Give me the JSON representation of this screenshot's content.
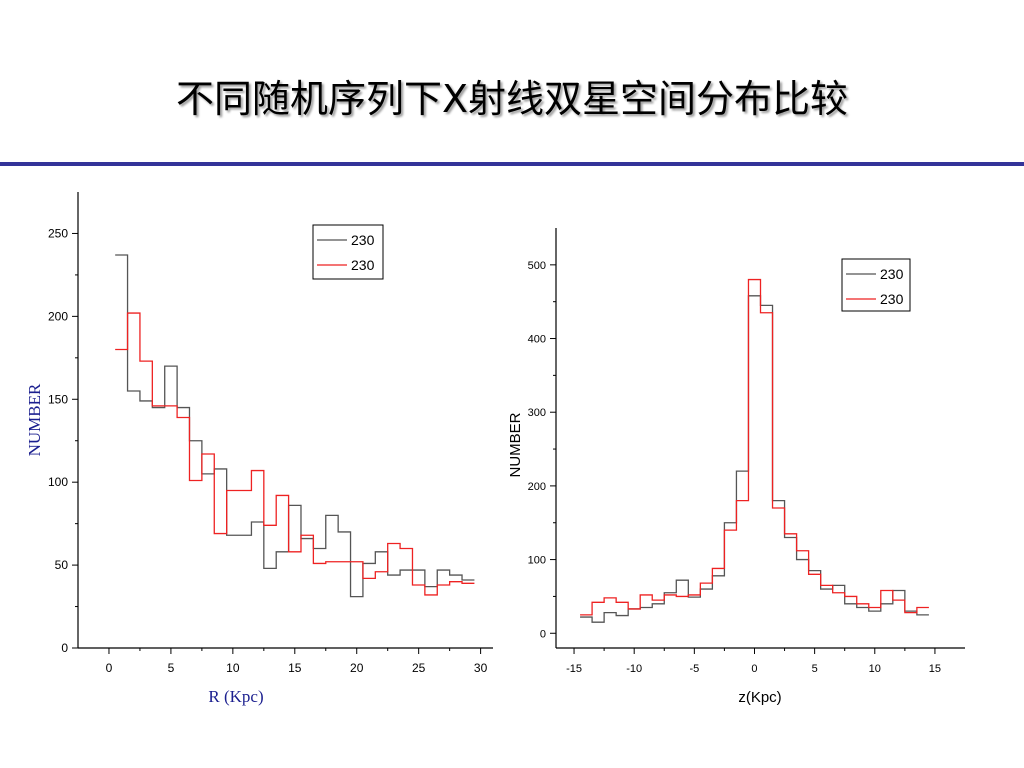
{
  "slide": {
    "title": "不同随机序列下X射线双星空间分布比较",
    "accent_color": "#333399"
  },
  "chart_data": [
    {
      "type": "line",
      "step": true,
      "xlabel": "R (Kpc)",
      "ylabel": "NUMBER",
      "xlim": [
        -2.5,
        31
      ],
      "ylim": [
        0,
        275
      ],
      "xticks": [
        0,
        5,
        10,
        15,
        20,
        25,
        30
      ],
      "yticks": [
        0,
        50,
        100,
        150,
        200,
        250
      ],
      "legend_position": "top-right",
      "bin_edges": [
        0.5,
        1.5,
        2.5,
        3.5,
        4.5,
        5.5,
        6.5,
        7.5,
        8.5,
        9.5,
        10.5,
        11.5,
        12.5,
        13.5,
        14.5,
        15.5,
        16.5,
        17.5,
        18.5,
        19.5,
        20.5,
        21.5,
        22.5,
        23.5,
        24.5,
        25.5,
        26.5,
        27.5,
        28.5,
        29.5
      ],
      "series": [
        {
          "name": "230",
          "color": "#555555",
          "values": [
            237,
            155,
            149,
            145,
            170,
            145,
            125,
            105,
            108,
            68,
            68,
            76,
            48,
            58,
            86,
            66,
            60,
            80,
            70,
            31,
            51,
            58,
            44,
            47,
            47,
            37,
            47,
            44,
            41
          ]
        },
        {
          "name": "230",
          "color": "#ee2222",
          "values": [
            180,
            202,
            173,
            146,
            146,
            139,
            101,
            117,
            69,
            95,
            95,
            107,
            74,
            92,
            58,
            68,
            51,
            52,
            52,
            52,
            42,
            46,
            63,
            60,
            38,
            32,
            38,
            40,
            39
          ]
        }
      ]
    },
    {
      "type": "line",
      "step": true,
      "xlabel": "z(Kpc)",
      "ylabel": "NUMBER",
      "xlim": [
        -16.5,
        17.5
      ],
      "ylim": [
        -20,
        550
      ],
      "xticks": [
        -15,
        -10,
        -5,
        0,
        5,
        10,
        15
      ],
      "yticks": [
        0,
        100,
        200,
        300,
        400,
        500
      ],
      "legend_position": "top-right",
      "bin_edges": [
        -14.5,
        -13.5,
        -12.5,
        -11.5,
        -10.5,
        -9.5,
        -8.5,
        -7.5,
        -6.5,
        -5.5,
        -4.5,
        -3.5,
        -2.5,
        -1.5,
        -0.5,
        0.5,
        1.5,
        2.5,
        3.5,
        4.5,
        5.5,
        6.5,
        7.5,
        8.5,
        9.5,
        10.5,
        11.5,
        12.5,
        13.5,
        14.5
      ],
      "series": [
        {
          "name": "230",
          "color": "#555555",
          "values": [
            22,
            15,
            28,
            24,
            33,
            35,
            40,
            55,
            72,
            49,
            60,
            78,
            150,
            220,
            458,
            445,
            180,
            130,
            100,
            85,
            60,
            65,
            40,
            35,
            30,
            40,
            58,
            30,
            25
          ]
        },
        {
          "name": "230",
          "color": "#ee2222",
          "values": [
            25,
            42,
            48,
            42,
            33,
            52,
            45,
            52,
            50,
            52,
            68,
            88,
            140,
            180,
            480,
            435,
            170,
            135,
            112,
            80,
            65,
            55,
            50,
            40,
            35,
            58,
            45,
            28,
            35
          ]
        }
      ]
    }
  ]
}
